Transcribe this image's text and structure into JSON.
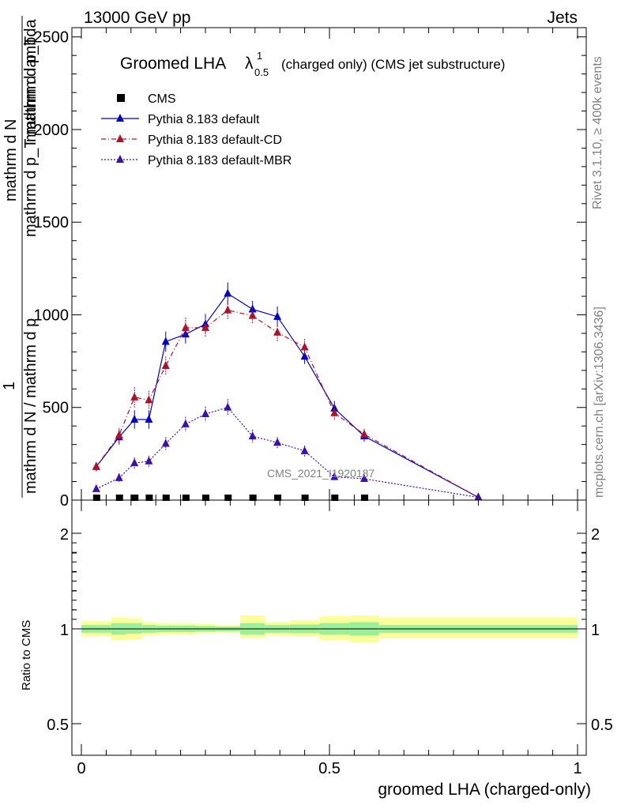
{
  "header": {
    "left": "13000 GeV pp",
    "right": "Jets"
  },
  "chart_data": {
    "type": "line",
    "title": "Groomed LHA",
    "title_symbol": "λ",
    "title_sup": "1",
    "title_sub": "0.5",
    "title_suffix": "(charged only) (CMS jet substructure)",
    "ylabel_lines": [
      "mathrm d N / mathrm d p",
      "mathrm d N",
      "1",
      "mathrm d lambda",
      "mathrm d p_T mathrm d p_T"
    ],
    "ylabel_main": "1 / (mathrm d N / mathrm d p_T) · mathrm d²N / (mathrm d p_T mathrm d lambda)",
    "xlabel": "groomed LHA (charged-only)",
    "ratio_ylabel": "Ratio to CMS",
    "analysis_id": "CMS_2021_I1920187",
    "side_text_1": "Rivet 3.1.10, ≥ 400k events",
    "side_text_2": "mcplots.cern.ch [arXiv:1306.3436]",
    "xlim": [
      0,
      1
    ],
    "ylim": [
      0,
      2550
    ],
    "ratio_ylim": [
      0.35,
      2.3
    ],
    "x_ticks": [
      "0",
      "0.5",
      "1"
    ],
    "x_tick_values": [
      0,
      0.5,
      1
    ],
    "y_ticks": [
      "0",
      "500",
      "1000",
      "1500",
      "2000",
      "2500"
    ],
    "y_tick_values": [
      0,
      500,
      1000,
      1500,
      2000,
      2500
    ],
    "ratio_ticks": [
      "0.5",
      "1",
      "2"
    ],
    "ratio_tick_values": [
      0.5,
      1,
      2
    ],
    "cms_x": [
      0.03,
      0.076,
      0.107,
      0.136,
      0.17,
      0.21,
      0.25,
      0.295,
      0.345,
      0.395,
      0.45,
      0.51,
      0.57
    ],
    "cms_y": [
      0,
      0,
      0,
      0,
      0,
      0,
      0,
      0,
      0,
      0,
      0,
      0,
      0
    ],
    "series": [
      {
        "name": "Pythia 8.183 default",
        "color": "#0000cc",
        "style": "solid",
        "x": [
          0.03,
          0.076,
          0.107,
          0.136,
          0.17,
          0.21,
          0.25,
          0.295,
          0.345,
          0.395,
          0.45,
          0.51,
          0.57,
          0.8
        ],
        "y": [
          180,
          340,
          435,
          435,
          855,
          895,
          950,
          1115,
          1030,
          990,
          775,
          495,
          345,
          15
        ],
        "err": [
          25,
          40,
          50,
          50,
          55,
          50,
          55,
          60,
          45,
          55,
          40,
          40,
          30,
          5
        ]
      },
      {
        "name": "Pythia 8.183 default-CD",
        "color": "#b0102a",
        "style": "dashdot",
        "x": [
          0.03,
          0.076,
          0.107,
          0.136,
          0.17,
          0.21,
          0.25,
          0.295,
          0.345,
          0.395,
          0.45,
          0.51,
          0.57,
          0.8
        ],
        "y": [
          180,
          350,
          555,
          540,
          725,
          930,
          930,
          1025,
          995,
          905,
          825,
          470,
          355,
          15
        ],
        "err": [
          25,
          40,
          55,
          50,
          50,
          55,
          50,
          50,
          45,
          50,
          45,
          40,
          30,
          5
        ]
      },
      {
        "name": "Pythia 8.183 default-MBR",
        "color": "#3a10b0",
        "style": "dotted",
        "x": [
          0.03,
          0.076,
          0.107,
          0.136,
          0.17,
          0.21,
          0.25,
          0.295,
          0.345,
          0.395,
          0.45,
          0.51,
          0.57,
          0.8
        ],
        "y": [
          60,
          120,
          200,
          210,
          305,
          410,
          465,
          500,
          345,
          310,
          265,
          125,
          115,
          15
        ],
        "err": [
          15,
          25,
          30,
          30,
          35,
          40,
          40,
          45,
          35,
          30,
          30,
          20,
          15,
          5
        ]
      }
    ],
    "ratio_bands": [
      {
        "x0": 0.0,
        "x1": 0.06,
        "inner": [
          0.96,
          1.04
        ],
        "outer": [
          0.92,
          1.08
        ]
      },
      {
        "x0": 0.06,
        "x1": 0.09,
        "inner": [
          0.94,
          1.05
        ],
        "outer": [
          0.91,
          1.08
        ]
      },
      {
        "x0": 0.06,
        "x1": 0.09,
        "inner": [
          0.94,
          1.06
        ],
        "outer": [
          0.88,
          1.12
        ]
      },
      {
        "x0": 0.09,
        "x1": 0.122,
        "inner": [
          0.95,
          1.06
        ],
        "outer": [
          0.89,
          1.11
        ]
      },
      {
        "x0": 0.122,
        "x1": 0.15,
        "inner": [
          0.96,
          1.04
        ],
        "outer": [
          0.93,
          1.07
        ]
      },
      {
        "x0": 0.15,
        "x1": 0.19,
        "inner": [
          0.965,
          1.035
        ],
        "outer": [
          0.94,
          1.06
        ]
      },
      {
        "x0": 0.19,
        "x1": 0.23,
        "inner": [
          0.965,
          1.035
        ],
        "outer": [
          0.94,
          1.06
        ]
      },
      {
        "x0": 0.23,
        "x1": 0.27,
        "inner": [
          0.97,
          1.03
        ],
        "outer": [
          0.95,
          1.05
        ]
      },
      {
        "x0": 0.27,
        "x1": 0.32,
        "inner": [
          0.975,
          1.025
        ],
        "outer": [
          0.96,
          1.04
        ]
      },
      {
        "x0": 0.32,
        "x1": 0.37,
        "inner": [
          0.94,
          1.06
        ],
        "outer": [
          0.9,
          1.14
        ]
      },
      {
        "x0": 0.37,
        "x1": 0.42,
        "inner": [
          0.96,
          1.04
        ],
        "outer": [
          0.93,
          1.07
        ]
      },
      {
        "x0": 0.42,
        "x1": 0.48,
        "inner": [
          0.955,
          1.045
        ],
        "outer": [
          0.92,
          1.09
        ]
      },
      {
        "x0": 0.48,
        "x1": 0.54,
        "inner": [
          0.94,
          1.06
        ],
        "outer": [
          0.88,
          1.13
        ]
      },
      {
        "x0": 0.54,
        "x1": 0.6,
        "inner": [
          0.93,
          1.07
        ],
        "outer": [
          0.86,
          1.14
        ]
      },
      {
        "x0": 0.6,
        "x1": 1.0,
        "inner": [
          0.96,
          1.04
        ],
        "outer": [
          0.9,
          1.12
        ]
      }
    ],
    "colors": {
      "inner_band": "#99f099",
      "outer_band": "#ffff99",
      "cms": "#000000"
    }
  }
}
